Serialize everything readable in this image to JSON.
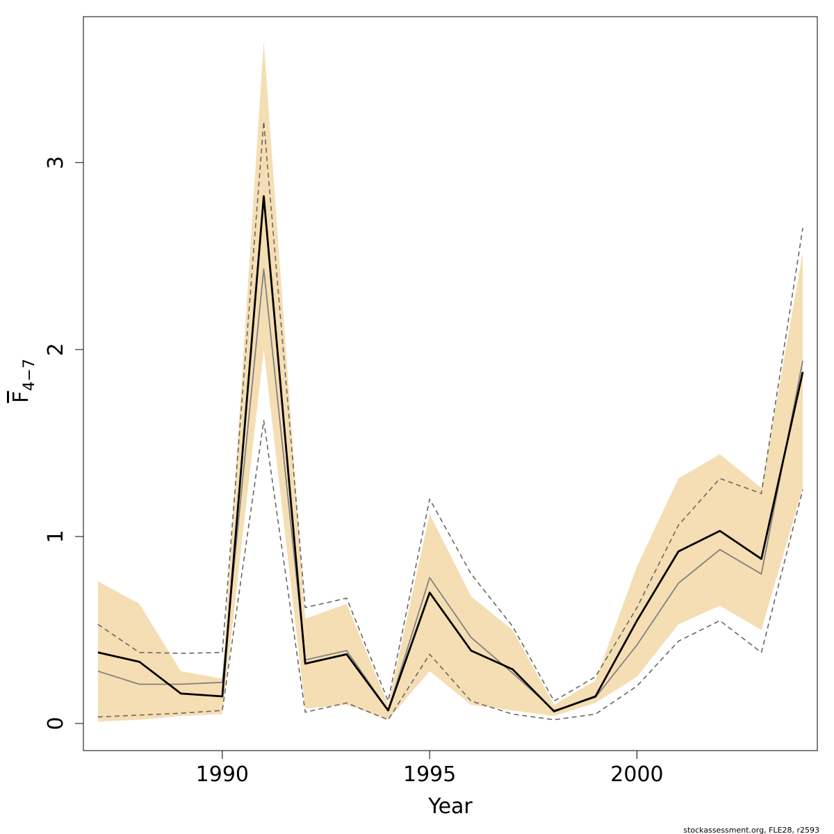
{
  "chart_data": {
    "type": "line",
    "xlabel": "Year",
    "ylabel": {
      "main": "F",
      "subscript": "4−7",
      "overline": true
    },
    "xlim": [
      1986.65,
      2004.35
    ],
    "ylim": [
      -0.145,
      3.78
    ],
    "x_ticks": [
      1990,
      1995,
      2000
    ],
    "y_ticks": [
      0,
      1,
      2,
      3
    ],
    "grid": false,
    "legend": "none",
    "colors": {
      "band": "#f5deb3",
      "estimate": "#000000",
      "alt_estimate": "#808080",
      "alt_bounds": "#666666"
    },
    "x": [
      1987,
      1988,
      1989,
      1990,
      1991,
      1992,
      1993,
      1994,
      1995,
      1996,
      1997,
      1998,
      1999,
      2000,
      2001,
      2002,
      2003,
      2004
    ],
    "series": [
      {
        "role": "band-upper",
        "values": [
          0.76,
          0.64,
          0.28,
          0.24,
          3.65,
          0.56,
          0.64,
          0.1,
          1.12,
          0.68,
          0.5,
          0.1,
          0.23,
          0.84,
          1.31,
          1.44,
          1.26,
          2.52
        ]
      },
      {
        "role": "band-lower",
        "values": [
          0.01,
          0.02,
          0.04,
          0.05,
          2.0,
          0.08,
          0.1,
          0.02,
          0.28,
          0.1,
          0.07,
          0.04,
          0.11,
          0.25,
          0.53,
          0.63,
          0.5,
          1.26
        ]
      },
      {
        "role": "estimate",
        "values": [
          0.38,
          0.33,
          0.16,
          0.145,
          2.82,
          0.32,
          0.37,
          0.07,
          0.7,
          0.39,
          0.29,
          0.065,
          0.145,
          0.55,
          0.92,
          1.03,
          0.88,
          1.88
        ]
      },
      {
        "role": "alt-estimate",
        "values": [
          0.28,
          0.21,
          0.21,
          0.22,
          2.43,
          0.34,
          0.39,
          0.07,
          0.78,
          0.46,
          0.27,
          0.07,
          0.14,
          0.42,
          0.75,
          0.93,
          0.8,
          1.94
        ]
      },
      {
        "role": "alt-upper",
        "values": [
          0.53,
          0.38,
          0.375,
          0.38,
          3.22,
          0.62,
          0.67,
          0.12,
          1.2,
          0.8,
          0.52,
          0.12,
          0.25,
          0.62,
          1.06,
          1.31,
          1.23,
          2.65
        ]
      },
      {
        "role": "alt-lower",
        "values": [
          0.035,
          0.045,
          0.055,
          0.07,
          1.62,
          0.06,
          0.11,
          0.02,
          0.37,
          0.12,
          0.05,
          0.02,
          0.05,
          0.2,
          0.44,
          0.55,
          0.38,
          1.25
        ]
      }
    ]
  },
  "footer": {
    "credit": "stockassessment.org, FLE28, r2593"
  }
}
